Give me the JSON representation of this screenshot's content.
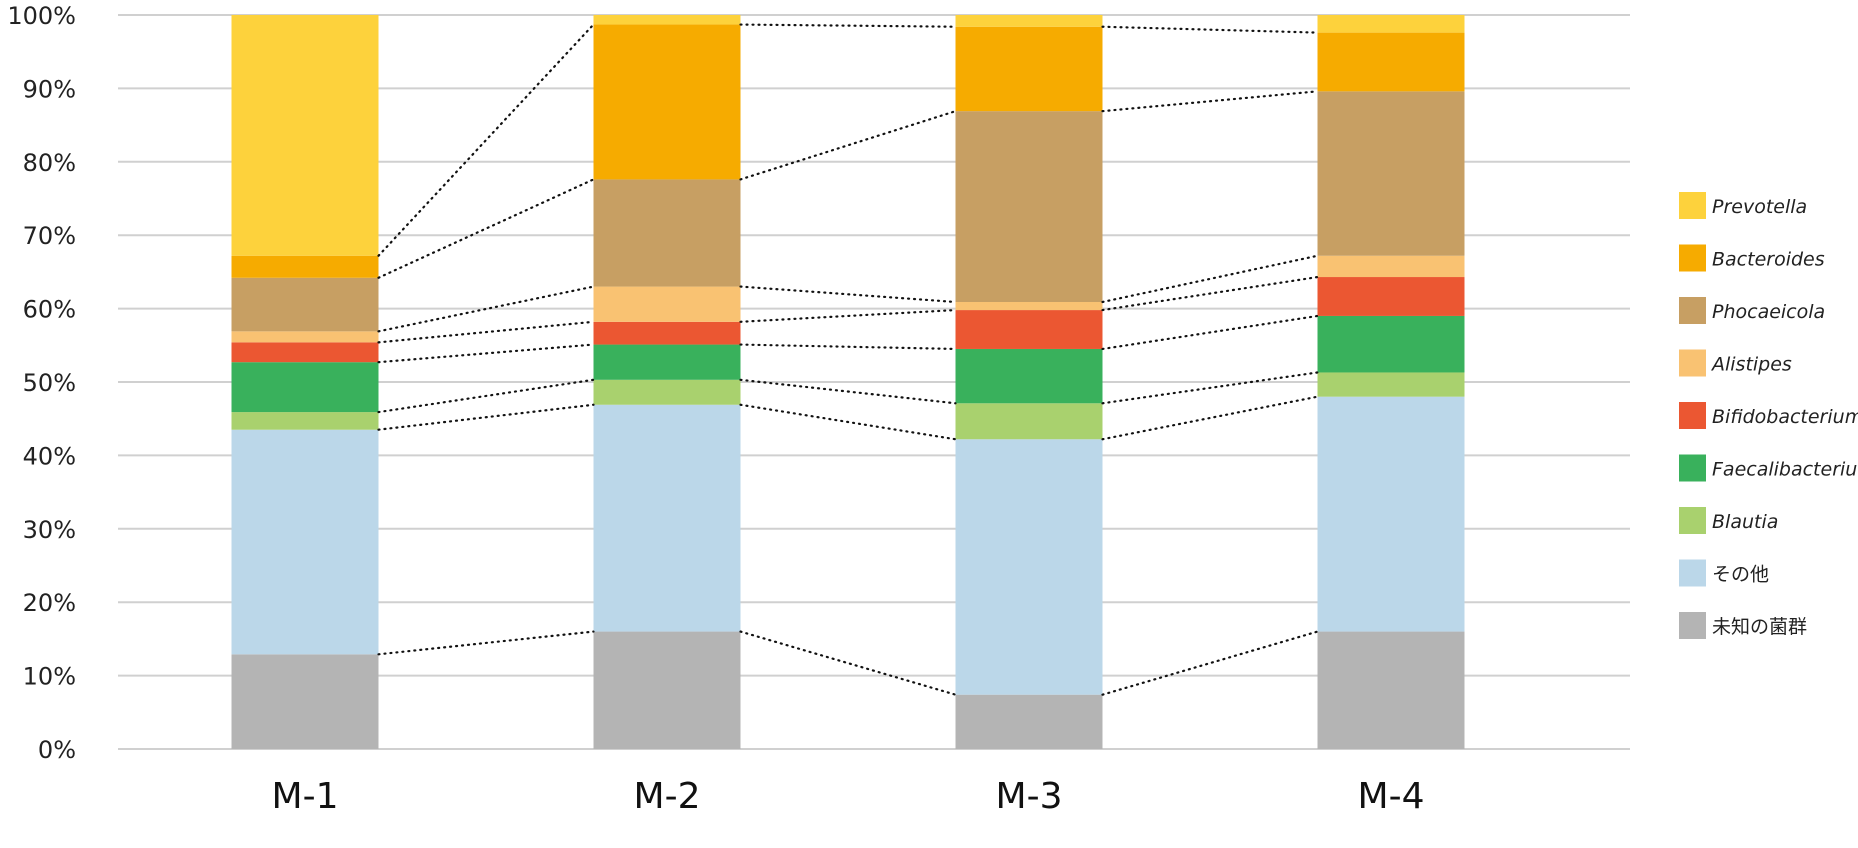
{
  "chart_data": {
    "type": "bar",
    "stacked": true,
    "percent": true,
    "categories": [
      "M-1",
      "M-2",
      "M-3",
      "M-4"
    ],
    "ylim": [
      0,
      100
    ],
    "yticks": [
      "0%",
      "10%",
      "20%",
      "30%",
      "40%",
      "50%",
      "60%",
      "70%",
      "80%",
      "90%",
      "100%"
    ],
    "grid": true,
    "legend_position": "right",
    "connector_lines": "dotted",
    "series": [
      {
        "name": "未知の菌群",
        "color": "#b4b4b4",
        "italic": false,
        "values": [
          12.9,
          16.0,
          7.4,
          16.0
        ]
      },
      {
        "name": "その他",
        "color": "#bbd7e9",
        "italic": false,
        "values": [
          30.6,
          30.9,
          34.8,
          32.0
        ]
      },
      {
        "name": "Blautia",
        "color": "#a9d16e",
        "italic": true,
        "values": [
          2.4,
          3.4,
          4.9,
          3.3
        ]
      },
      {
        "name": "Faecalibacterium",
        "color": "#39b15c",
        "italic": true,
        "values": [
          6.8,
          4.8,
          7.4,
          7.7
        ]
      },
      {
        "name": "Bifidobacterium",
        "color": "#eb5732",
        "italic": true,
        "values": [
          2.7,
          3.1,
          5.3,
          5.3
        ]
      },
      {
        "name": "Alistipes",
        "color": "#f9c272",
        "italic": true,
        "values": [
          1.5,
          4.8,
          1.1,
          2.9
        ]
      },
      {
        "name": "Phocaeicola",
        "color": "#c79f63",
        "italic": true,
        "values": [
          7.3,
          14.6,
          26.0,
          22.4
        ]
      },
      {
        "name": "Bacteroides",
        "color": "#f6ab00",
        "italic": true,
        "values": [
          3.0,
          21.1,
          11.5,
          8.0
        ]
      },
      {
        "name": "Prevotella",
        "color": "#fdd23c",
        "italic": true,
        "values": [
          32.8,
          1.3,
          1.6,
          2.4
        ]
      }
    ],
    "legend_order": [
      "Prevotella",
      "Bacteroides",
      "Phocaeicola",
      "Alistipes",
      "Bifidobacterium",
      "Faecalibacterium",
      "Blautia",
      "その他",
      "未知の菌群"
    ]
  }
}
